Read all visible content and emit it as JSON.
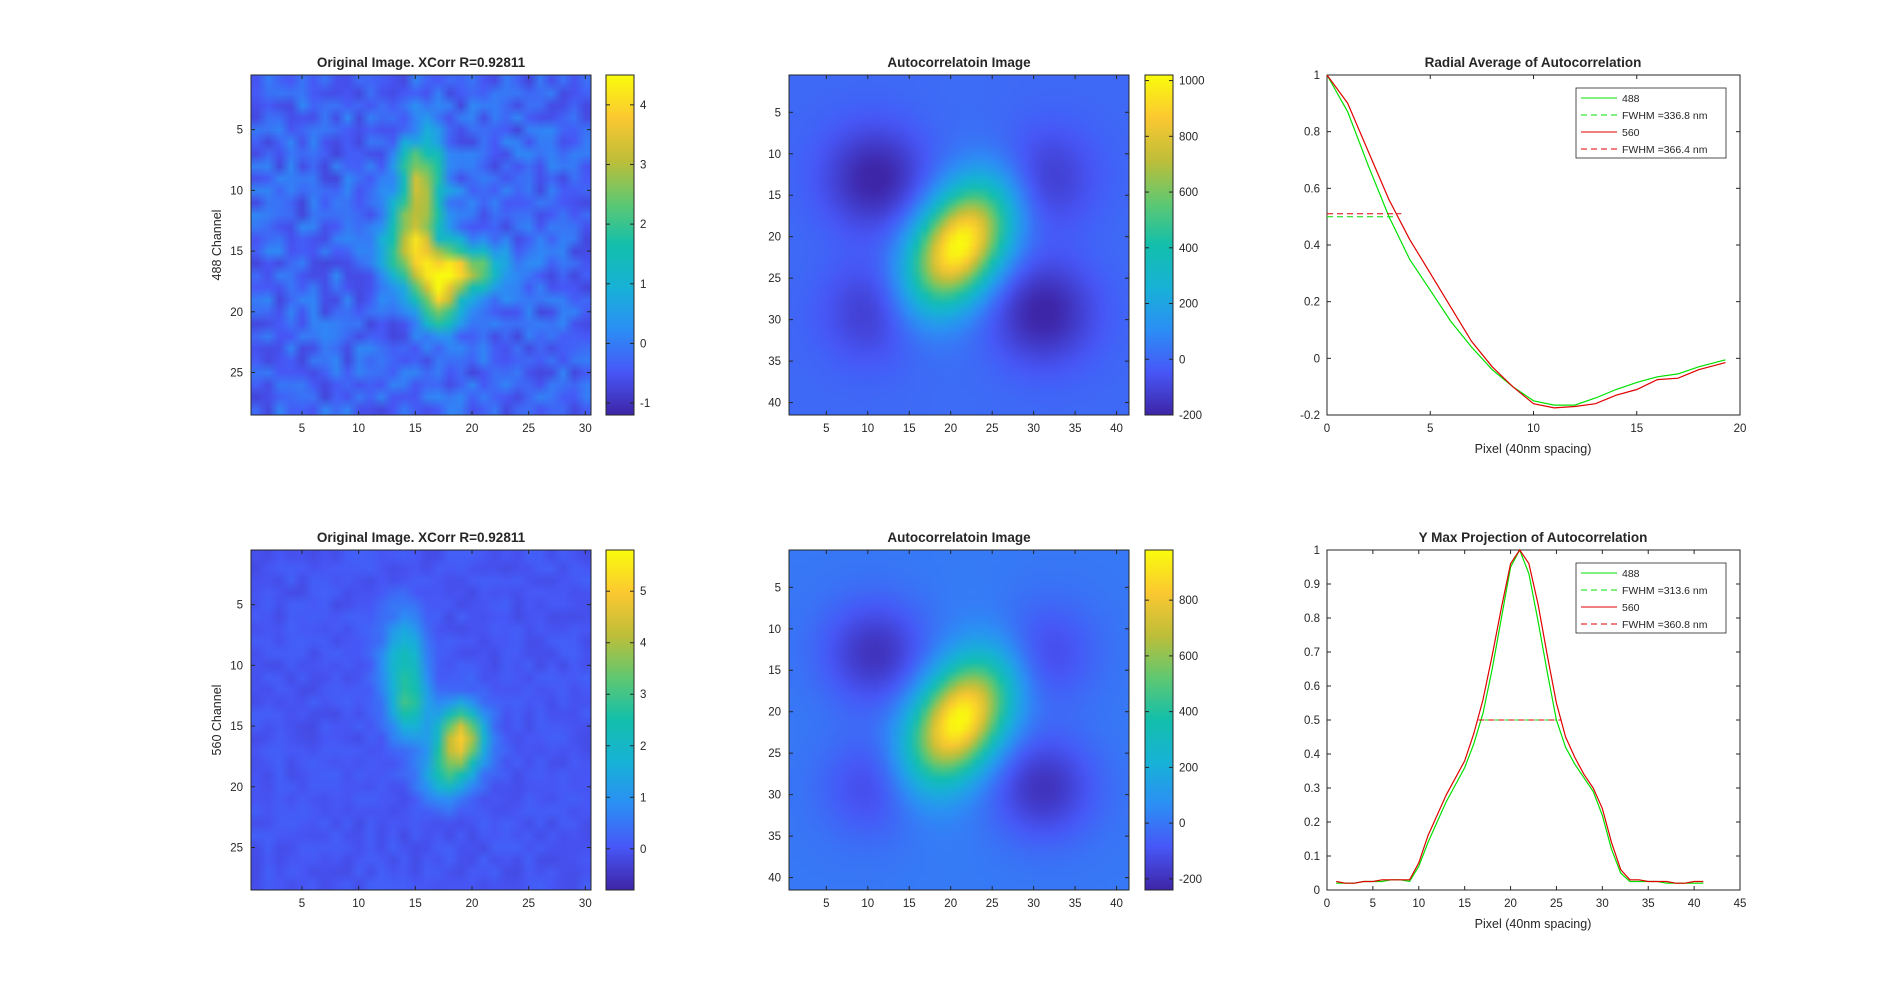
{
  "colors": {
    "green": "#00e000",
    "red": "#e00000",
    "axis": "#262626",
    "background": "#ffffff"
  },
  "colormap": "parula",
  "chart_data": [
    {
      "type": "heatmap",
      "title": "Original Image. XCorr R=0.92811",
      "ylabel": "488 Channel",
      "xlim": [
        0.5,
        30.5
      ],
      "ylim": [
        0.5,
        28.5
      ],
      "xticks": [
        "5",
        "10",
        "15",
        "20",
        "25",
        "30"
      ],
      "yticks": [
        "5",
        "10",
        "15",
        "20",
        "25"
      ],
      "colorbar": {
        "range": [
          -1.2,
          4.5
        ],
        "ticks": [
          "-1",
          "0",
          "1",
          "2",
          "3",
          "4"
        ]
      }
    },
    {
      "type": "heatmap",
      "title": "Autocorrelatoin Image",
      "xlim": [
        0.5,
        41.5
      ],
      "ylim": [
        0.5,
        41.5
      ],
      "xticks": [
        "5",
        "10",
        "15",
        "20",
        "25",
        "30",
        "35",
        "40"
      ],
      "yticks": [
        "5",
        "10",
        "15",
        "20",
        "25",
        "30",
        "35",
        "40"
      ],
      "colorbar": {
        "range": [
          -200,
          1020
        ],
        "ticks": [
          "-200",
          "0",
          "200",
          "400",
          "600",
          "800",
          "1000"
        ]
      }
    },
    {
      "type": "line",
      "title": "Radial Average of Autocorrelation",
      "xlabel": "Pixel (40nm spacing)",
      "xlim": [
        0,
        20
      ],
      "ylim": [
        -0.2,
        1
      ],
      "xticks": [
        "0",
        "5",
        "10",
        "15",
        "20"
      ],
      "yticks": [
        "-0.2",
        "0",
        "0.2",
        "0.4",
        "0.6",
        "0.8",
        "1"
      ],
      "legend_position": "top-right",
      "legend": [
        "488",
        "FWHM =336.8 nm",
        "560",
        "FWHM =366.4 nm"
      ],
      "series": [
        {
          "name": "488",
          "color": "green",
          "style": "solid",
          "x": [
            0,
            1,
            2,
            3,
            4,
            5,
            6,
            7,
            8,
            9,
            10,
            11,
            12,
            13,
            14,
            15,
            16,
            17,
            18,
            19.3
          ],
          "y": [
            1.0,
            0.87,
            0.68,
            0.5,
            0.35,
            0.24,
            0.13,
            0.04,
            -0.04,
            -0.1,
            -0.15,
            -0.165,
            -0.165,
            -0.14,
            -0.11,
            -0.085,
            -0.065,
            -0.055,
            -0.03,
            -0.005
          ]
        },
        {
          "name": "FWHM =336.8 nm",
          "color": "green",
          "style": "dashed",
          "x": [
            0,
            3.4
          ],
          "y": [
            0.5,
            0.5
          ]
        },
        {
          "name": "560",
          "color": "red",
          "style": "solid",
          "x": [
            0,
            1,
            2,
            3,
            4,
            5,
            6,
            7,
            8,
            9,
            10,
            11,
            12,
            13,
            14,
            15,
            16,
            17,
            18,
            19.3
          ],
          "y": [
            1.0,
            0.9,
            0.73,
            0.56,
            0.42,
            0.3,
            0.18,
            0.06,
            -0.03,
            -0.1,
            -0.16,
            -0.175,
            -0.17,
            -0.16,
            -0.13,
            -0.11,
            -0.075,
            -0.07,
            -0.04,
            -0.015
          ]
        },
        {
          "name": "FWHM =366.4 nm",
          "color": "red",
          "style": "dashed",
          "x": [
            0,
            3.6
          ],
          "y": [
            0.51,
            0.51
          ]
        }
      ]
    },
    {
      "type": "heatmap",
      "title": "Original Image. XCorr R=0.92811",
      "ylabel": "560 Channel",
      "xlim": [
        0.5,
        30.5
      ],
      "ylim": [
        0.5,
        28.5
      ],
      "xticks": [
        "5",
        "10",
        "15",
        "20",
        "25",
        "30"
      ],
      "yticks": [
        "5",
        "10",
        "15",
        "20",
        "25"
      ],
      "colorbar": {
        "range": [
          -0.8,
          5.8
        ],
        "ticks": [
          "0",
          "1",
          "2",
          "3",
          "4",
          "5"
        ]
      }
    },
    {
      "type": "heatmap",
      "title": "Autocorrelatoin Image",
      "xlim": [
        0.5,
        41.5
      ],
      "ylim": [
        0.5,
        41.5
      ],
      "xticks": [
        "5",
        "10",
        "15",
        "20",
        "25",
        "30",
        "35",
        "40"
      ],
      "yticks": [
        "5",
        "10",
        "15",
        "20",
        "25",
        "30",
        "35",
        "40"
      ],
      "colorbar": {
        "range": [
          -240,
          980
        ],
        "ticks": [
          "-200",
          "0",
          "200",
          "400",
          "600",
          "800"
        ]
      }
    },
    {
      "type": "line",
      "title": "Y Max Projection of Autocorrelation",
      "xlabel": "Pixel (40nm spacing)",
      "xlim": [
        0,
        45
      ],
      "ylim": [
        0,
        1
      ],
      "xticks": [
        "0",
        "5",
        "10",
        "15",
        "20",
        "25",
        "30",
        "35",
        "40",
        "45"
      ],
      "yticks": [
        "0",
        "0.1",
        "0.2",
        "0.3",
        "0.4",
        "0.5",
        "0.6",
        "0.7",
        "0.8",
        "0.9",
        "1"
      ],
      "legend_position": "top-right",
      "legend": [
        "488",
        "FWHM =313.6 nm",
        "560",
        "FWHM =360.8 nm"
      ],
      "series": [
        {
          "name": "488",
          "color": "green",
          "style": "solid",
          "x": [
            1,
            2,
            3,
            4,
            5,
            6,
            7,
            8,
            9,
            10,
            11,
            12,
            13,
            14,
            15,
            16,
            17,
            18,
            19,
            20,
            21,
            22,
            23,
            24,
            25,
            26,
            27,
            28,
            29,
            30,
            31,
            32,
            33,
            34,
            35,
            36,
            37,
            38,
            39,
            40,
            41
          ],
          "y": [
            0.02,
            0.02,
            0.02,
            0.025,
            0.025,
            0.025,
            0.03,
            0.03,
            0.025,
            0.07,
            0.14,
            0.2,
            0.26,
            0.31,
            0.36,
            0.43,
            0.52,
            0.65,
            0.8,
            0.95,
            1.0,
            0.93,
            0.79,
            0.64,
            0.5,
            0.42,
            0.37,
            0.33,
            0.29,
            0.22,
            0.12,
            0.05,
            0.025,
            0.025,
            0.025,
            0.025,
            0.02,
            0.02,
            0.02,
            0.02,
            0.02
          ]
        },
        {
          "name": "FWHM =313.6 nm",
          "color": "green",
          "style": "dashed",
          "x": [
            17.2,
            25.0
          ],
          "y": [
            0.5,
            0.5
          ]
        },
        {
          "name": "560",
          "color": "red",
          "style": "solid",
          "x": [
            1,
            2,
            3,
            4,
            5,
            6,
            7,
            8,
            9,
            10,
            11,
            12,
            13,
            14,
            15,
            16,
            17,
            18,
            19,
            20,
            21,
            22,
            23,
            24,
            25,
            26,
            27,
            28,
            29,
            30,
            31,
            32,
            33,
            34,
            35,
            36,
            37,
            38,
            39,
            40,
            41
          ],
          "y": [
            0.025,
            0.02,
            0.02,
            0.025,
            0.025,
            0.03,
            0.03,
            0.03,
            0.03,
            0.08,
            0.16,
            0.22,
            0.28,
            0.33,
            0.38,
            0.46,
            0.56,
            0.69,
            0.83,
            0.96,
            1.0,
            0.96,
            0.84,
            0.69,
            0.55,
            0.45,
            0.39,
            0.34,
            0.3,
            0.24,
            0.14,
            0.06,
            0.03,
            0.03,
            0.025,
            0.025,
            0.025,
            0.02,
            0.02,
            0.025,
            0.025
          ]
        },
        {
          "name": "FWHM =360.8 nm",
          "color": "red",
          "style": "dashed",
          "x": [
            16.5,
            25.5
          ],
          "y": [
            0.5,
            0.5
          ]
        }
      ]
    }
  ]
}
